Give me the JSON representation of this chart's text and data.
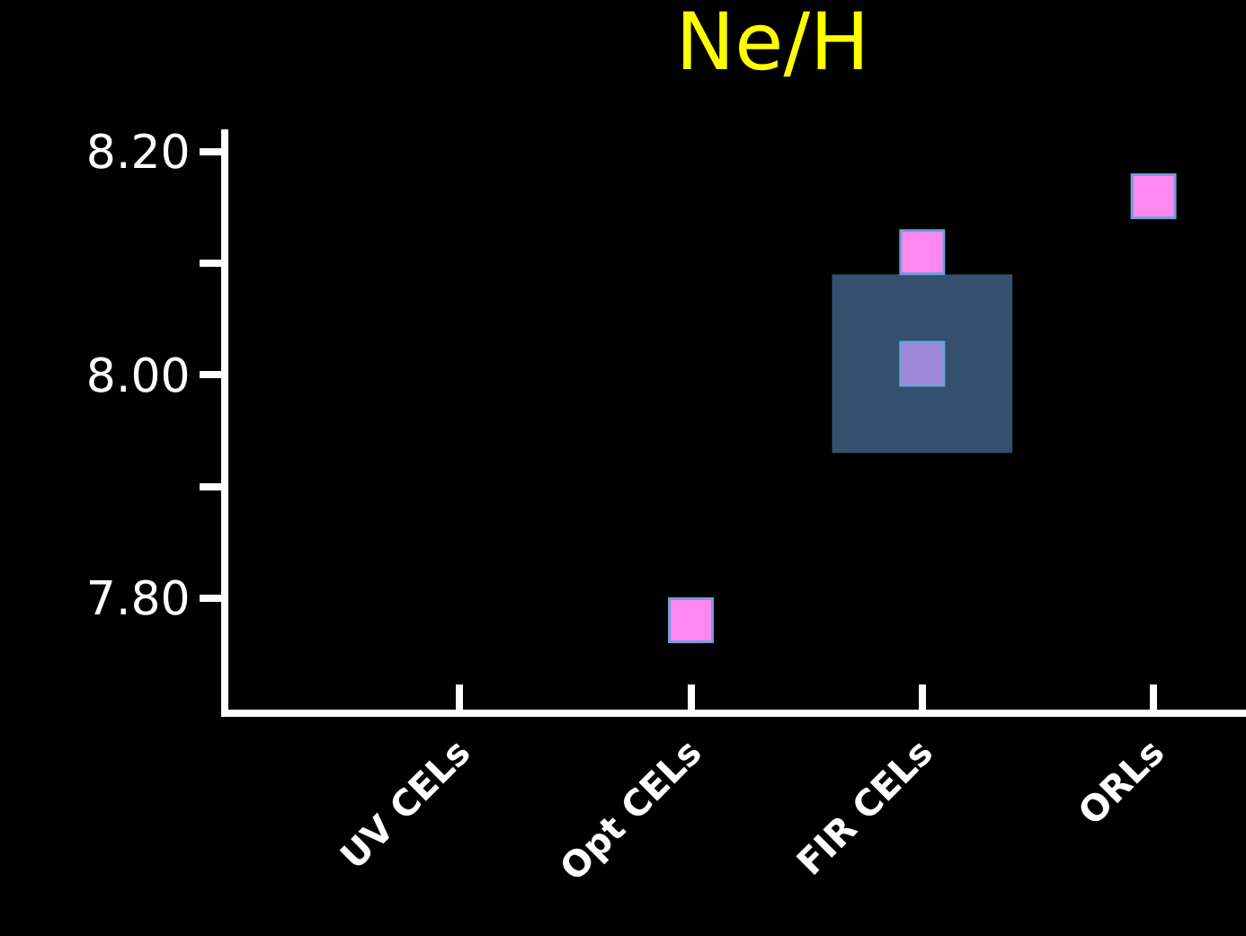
{
  "chart_data": {
    "type": "scatter",
    "title": "Ne/H",
    "categories": [
      "UV CELs",
      "Opt CELs",
      "FIR CELs",
      "ORLs"
    ],
    "series": [
      {
        "type": "bar",
        "color": "#34506e",
        "values": [
          null,
          null,
          0.16,
          null
        ],
        "base": [
          null,
          null,
          7.93,
          null
        ]
      },
      {
        "color": "#ff88f0",
        "values": [
          null,
          7.78,
          8.11,
          8.16
        ]
      },
      {
        "color": "#a088d8",
        "values": [
          null,
          null,
          8.01,
          null
        ]
      }
    ],
    "ylim": [
      7.7,
      8.22
    ],
    "yticks": [
      {
        "value": 7.8,
        "label": "7.80"
      },
      {
        "value": 7.9,
        "label": null
      },
      {
        "value": 8.0,
        "label": "8.00"
      },
      {
        "value": 8.1,
        "label": null
      },
      {
        "value": 8.2,
        "label": "8.20"
      }
    ],
    "marker": "square",
    "grid": false
  }
}
